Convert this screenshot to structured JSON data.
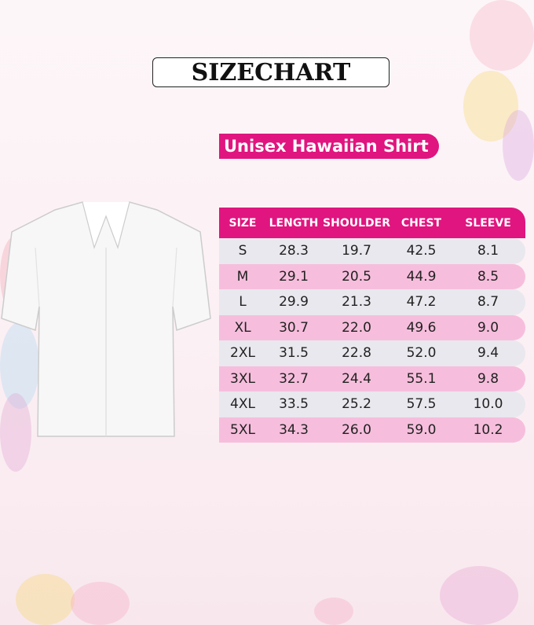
{
  "title": "SIZECHART",
  "subtitle": "Unisex Hawaiian Shirt",
  "colors": {
    "accent": "#e0157f",
    "row_gray": "#e9e8ee",
    "row_pink": "#f6bedc"
  },
  "table": {
    "headers": [
      "SIZE",
      "LENGTH",
      "SHOULDER",
      "CHEST",
      "SLEEVE"
    ],
    "rows": [
      [
        "S",
        "28.3",
        "19.7",
        "42.5",
        "8.1"
      ],
      [
        "M",
        "29.1",
        "20.5",
        "44.9",
        "8.5"
      ],
      [
        "L",
        "29.9",
        "21.3",
        "47.2",
        "8.7"
      ],
      [
        "XL",
        "30.7",
        "22.0",
        "49.6",
        "9.0"
      ],
      [
        "2XL",
        "31.5",
        "22.8",
        "52.0",
        "9.4"
      ],
      [
        "3XL",
        "32.7",
        "24.4",
        "55.1",
        "9.8"
      ],
      [
        "4XL",
        "33.5",
        "25.2",
        "57.5",
        "10.0"
      ],
      [
        "5XL",
        "34.3",
        "26.0",
        "59.0",
        "10.2"
      ]
    ]
  }
}
